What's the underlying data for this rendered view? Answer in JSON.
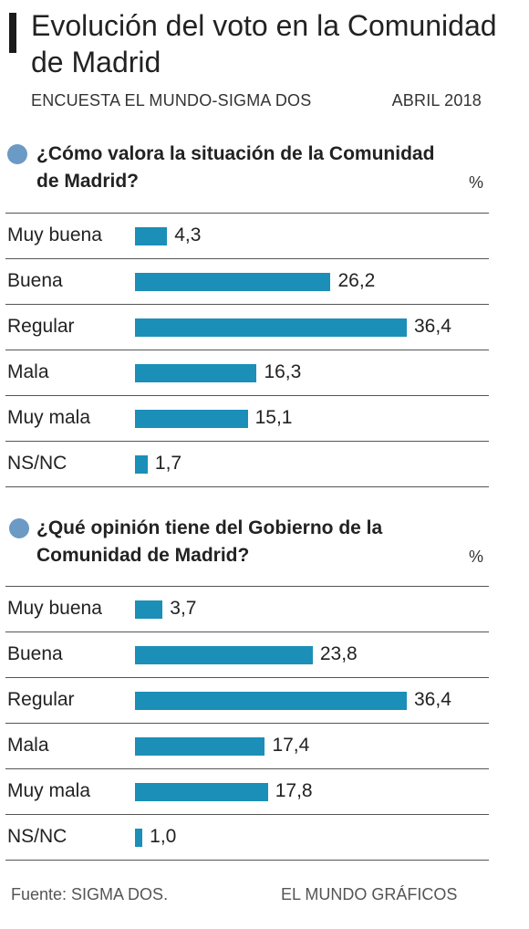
{
  "header": {
    "title": "Evolución del voto en la Comunidad de Madrid",
    "source_line": "ENCUESTA EL MUNDO-SIGMA DOS",
    "date": "ABRIL 2018"
  },
  "colors": {
    "bar": "#1b8fb8",
    "dot": "#6b9ac4"
  },
  "footer": {
    "source": "Fuente: SIGMA DOS.",
    "credit": "EL MUNDO GRÁFICOS"
  },
  "chart_data": [
    {
      "type": "bar",
      "orientation": "horizontal",
      "title": "¿Cómo valora la situación de la Comunidad de Madrid?",
      "unit_label": "%",
      "categories": [
        "Muy buena",
        "Buena",
        "Regular",
        "Mala",
        "Muy mala",
        "NS/NC"
      ],
      "values": [
        4.3,
        26.2,
        36.4,
        16.3,
        15.1,
        1.7
      ],
      "value_labels": [
        "4,3",
        "26,2",
        "36,4",
        "16,3",
        "15,1",
        "1,7"
      ],
      "xlim": [
        0,
        36.4
      ]
    },
    {
      "type": "bar",
      "orientation": "horizontal",
      "title": "¿Qué opinión tiene del Gobierno de la Comunidad de Madrid?",
      "unit_label": "%",
      "categories": [
        "Muy buena",
        "Buena",
        "Regular",
        "Mala",
        "Muy mala",
        "NS/NC"
      ],
      "values": [
        3.7,
        23.8,
        36.4,
        17.4,
        17.8,
        1.0
      ],
      "value_labels": [
        "3,7",
        "23,8",
        "36,4",
        "17,4",
        "17,8",
        "1,0"
      ],
      "xlim": [
        0,
        36.4
      ]
    }
  ]
}
